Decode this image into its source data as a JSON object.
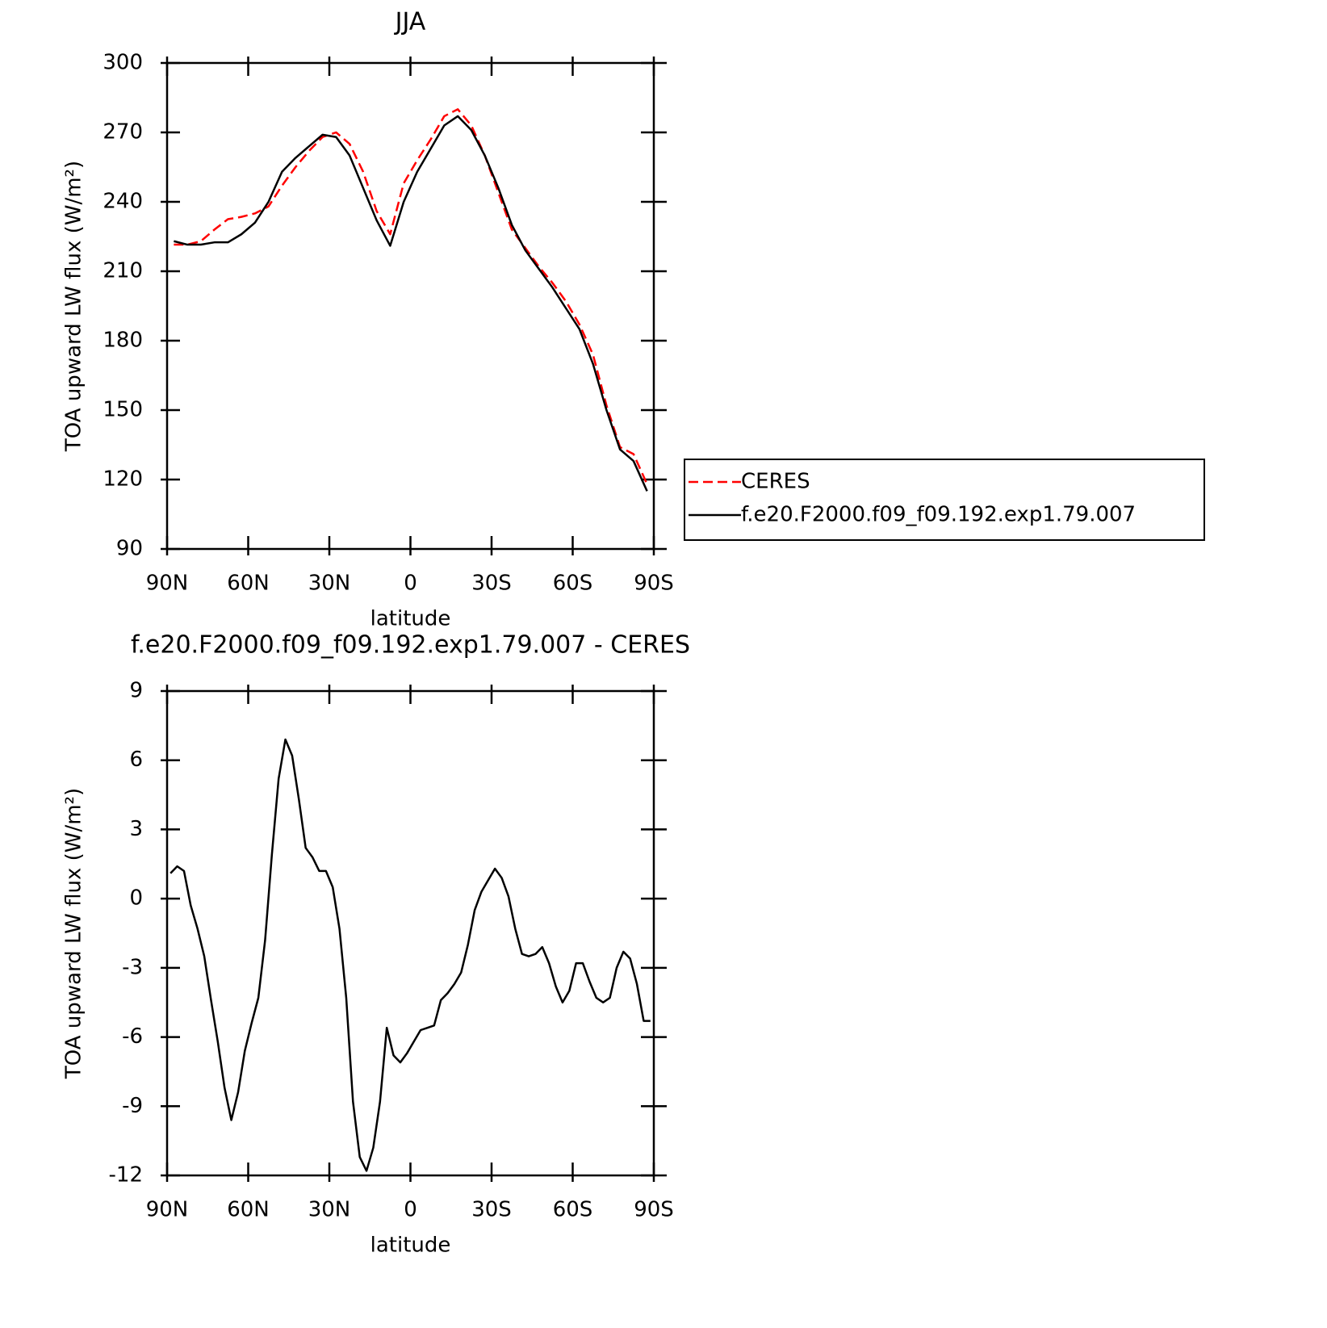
{
  "chart_data": [
    {
      "type": "line",
      "title": "JJA",
      "x_label": "latitude",
      "y_label": "TOA upward LW flux (W/m²)",
      "x": [
        87.5,
        82.5,
        77.5,
        72.5,
        67.5,
        62.5,
        57.5,
        52.5,
        47.5,
        42.5,
        37.5,
        32.5,
        27.5,
        22.5,
        17.5,
        12.5,
        7.5,
        2.5,
        -2.5,
        -7.5,
        -12.5,
        -17.5,
        -22.5,
        -27.5,
        -32.5,
        -37.5,
        -42.5,
        -47.5,
        -52.5,
        -57.5,
        -62.5,
        -67.5,
        -72.5,
        -77.5,
        -82.5,
        -87.5
      ],
      "series": [
        {
          "name": "CERES",
          "color": "#ff0000",
          "line_style": "dashed",
          "values": [
            221.5,
            221.5,
            223,
            228,
            232.5,
            233.5,
            235,
            238,
            247,
            255,
            262,
            268,
            270,
            265,
            253,
            236,
            226,
            248,
            258,
            267,
            277,
            280,
            273,
            260,
            244,
            228,
            220,
            212,
            205,
            197,
            187,
            174,
            152,
            134,
            131,
            118
          ]
        },
        {
          "name": "f.e20.F2000.f09_f09.192.exp1.79.007",
          "color": "#000000",
          "line_style": "solid",
          "values": [
            223,
            221.5,
            221.5,
            222.5,
            222.5,
            226,
            231,
            240,
            253,
            259,
            264,
            269,
            268,
            260,
            246,
            232,
            221,
            240,
            253,
            263,
            273,
            277,
            271,
            260,
            246,
            230,
            219,
            211,
            203,
            194,
            185,
            170,
            150,
            133,
            128,
            115
          ]
        }
      ],
      "xlim": [
        90,
        -90
      ],
      "xticks": [
        {
          "value": 90,
          "label": "90N"
        },
        {
          "value": 60,
          "label": "60N"
        },
        {
          "value": 30,
          "label": "30N"
        },
        0,
        {
          "value": -30,
          "label": "30S"
        },
        {
          "value": -60,
          "label": "60S"
        },
        {
          "value": -90,
          "label": "90S"
        }
      ],
      "ylim": [
        90,
        300
      ],
      "yticks": [
        90,
        120,
        150,
        180,
        210,
        240,
        270,
        300
      ],
      "grid": false,
      "legend": "right"
    },
    {
      "type": "line",
      "title": "f.e20.F2000.f09_f09.192.exp1.79.007 - CERES",
      "x_label": "latitude",
      "y_label": "TOA upward LW flux (W/m²)",
      "x": [
        88.75,
        86.25,
        83.75,
        81.25,
        78.75,
        76.25,
        73.75,
        71.25,
        68.75,
        66.25,
        63.75,
        61.25,
        58.75,
        56.25,
        53.75,
        51.25,
        48.75,
        46.25,
        43.75,
        41.25,
        38.75,
        36.25,
        33.75,
        31.25,
        28.75,
        26.25,
        23.75,
        21.25,
        18.75,
        16.25,
        13.75,
        11.25,
        8.75,
        6.25,
        3.75,
        1.25,
        -1.25,
        -3.75,
        -6.25,
        -8.75,
        -11.25,
        -13.75,
        -16.25,
        -18.75,
        -21.25,
        -23.75,
        -26.25,
        -28.75,
        -31.25,
        -33.75,
        -36.25,
        -38.75,
        -41.25,
        -43.75,
        -46.25,
        -48.75,
        -51.25,
        -53.75,
        -56.25,
        -58.75,
        -61.25,
        -63.75,
        -66.25,
        -68.75,
        -71.25,
        -73.75,
        -76.25,
        -78.75,
        -81.25,
        -83.75,
        -86.25,
        -88.75
      ],
      "values": [
        1.1,
        1.4,
        1.2,
        -0.3,
        -1.3,
        -2.5,
        -4.4,
        -6.2,
        -8.2,
        -9.6,
        -8.4,
        -6.6,
        -5.4,
        -4.3,
        -1.8,
        1.9,
        5.2,
        6.9,
        6.2,
        4.3,
        2.2,
        1.8,
        1.2,
        1.2,
        0.5,
        -1.3,
        -4.3,
        -8.8,
        -11.2,
        -11.8,
        -10.8,
        -8.8,
        -5.6,
        -6.8,
        -7.1,
        -6.7,
        -6.2,
        -5.7,
        -5.6,
        -5.5,
        -4.4,
        -4.1,
        -3.7,
        -3.2,
        -2.0,
        -0.5,
        0.3,
        0.8,
        1.3,
        0.9,
        0.1,
        -1.3,
        -2.4,
        -2.5,
        -2.4,
        -2.1,
        -2.8,
        -3.8,
        -4.5,
        -4.0,
        -2.8,
        -2.8,
        -3.6,
        -4.3,
        -4.5,
        -4.3,
        -3.0,
        -2.3,
        -2.6,
        -3.7,
        -5.3,
        -5.3
      ],
      "color": "#000000",
      "xlim": [
        90,
        -90
      ],
      "xticks": [
        {
          "value": 90,
          "label": "90N"
        },
        {
          "value": 60,
          "label": "60N"
        },
        {
          "value": 30,
          "label": "30N"
        },
        0,
        {
          "value": -30,
          "label": "30S"
        },
        {
          "value": -60,
          "label": "60S"
        },
        {
          "value": -90,
          "label": "90S"
        }
      ],
      "ylim": [
        -12,
        9
      ],
      "yticks": [
        -12,
        -9,
        -6,
        -3,
        0,
        3,
        6,
        9
      ],
      "grid": false
    }
  ]
}
